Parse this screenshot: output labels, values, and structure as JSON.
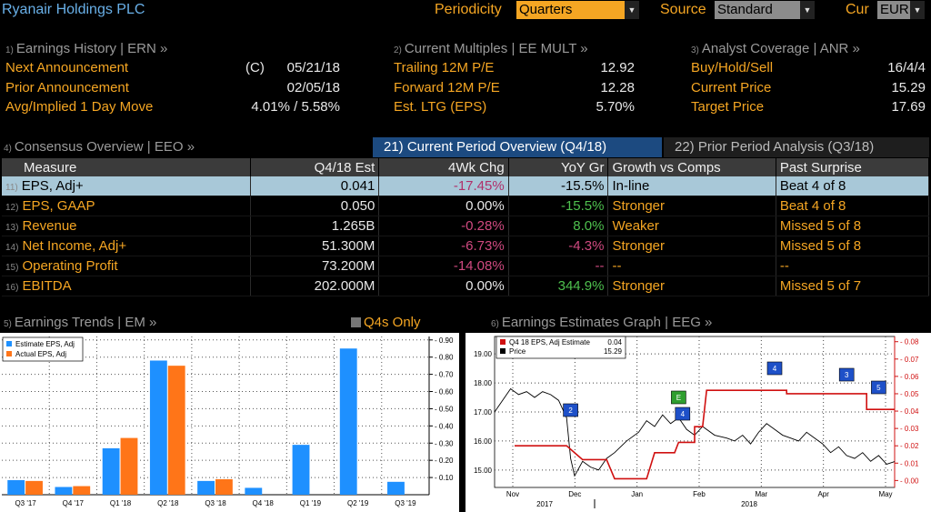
{
  "header": {
    "title": "Ryanair Holdings PLC",
    "periodicity_label": "Periodicity",
    "periodicity_value": "Quarters",
    "source_label": "Source",
    "source_value": "Standard",
    "cur_label": "Cur",
    "cur_value": "EUR"
  },
  "earnings_history": {
    "num": "1)",
    "title": "Earnings History | ERN »",
    "rows": [
      {
        "label": "Next Announcement",
        "prefix": "(C)",
        "value": "05/21/18"
      },
      {
        "label": "Prior Announcement",
        "prefix": "",
        "value": "02/05/18"
      },
      {
        "label": "Avg/Implied 1 Day Move",
        "prefix": "",
        "value": "4.01% / 5.58%"
      }
    ]
  },
  "current_multiples": {
    "num": "2)",
    "title": "Current Multiples | EE MULT »",
    "rows": [
      {
        "label": "Trailing 12M P/E",
        "value": "12.92"
      },
      {
        "label": "Forward 12M P/E",
        "value": "12.28"
      },
      {
        "label": "Est. LTG (EPS)",
        "value": "5.70%"
      }
    ]
  },
  "analyst_coverage": {
    "num": "3)",
    "title": "Analyst Coverage | ANR »",
    "rows": [
      {
        "label": "Buy/Hold/Sell",
        "value": "16/4/4"
      },
      {
        "label": "Current Price",
        "value": "15.29"
      },
      {
        "label": "Target Price",
        "value": "17.69"
      }
    ]
  },
  "consensus": {
    "num": "4)",
    "title": "Consensus Overview | EEO »",
    "tab_active": "21) Current Period Overview (Q4/18)",
    "tab_inactive": "22) Prior Period Analysis (Q3/18)",
    "columns": [
      "Measure",
      "Q4/18 Est",
      "4Wk Chg",
      "YoY Gr",
      "Growth vs Comps",
      "Past Surprise"
    ],
    "rows": [
      {
        "n": "11)",
        "measure": "EPS, Adj+",
        "est": "0.041",
        "chg": "-17.45%",
        "yoy": "-15.5%",
        "comps": "In-line",
        "surprise": "Beat 4 of 8"
      },
      {
        "n": "12)",
        "measure": "EPS, GAAP",
        "est": "0.050",
        "chg": "0.00%",
        "yoy": "-15.5%",
        "comps": "Stronger",
        "surprise": "Beat 4 of 8"
      },
      {
        "n": "13)",
        "measure": "Revenue",
        "est": "1.265B",
        "chg": "-0.28%",
        "yoy": "8.0%",
        "comps": "Weaker",
        "surprise": "Missed 5 of 8"
      },
      {
        "n": "14)",
        "measure": "Net Income, Adj+",
        "est": "51.300M",
        "chg": "-6.73%",
        "yoy": "-4.3%",
        "comps": "Stronger",
        "surprise": "Missed 5 of 8"
      },
      {
        "n": "15)",
        "measure": "Operating Profit",
        "est": "73.200M",
        "chg": "-14.08%",
        "yoy": "--",
        "comps": "--",
        "surprise": "--"
      },
      {
        "n": "16)",
        "measure": "EBITDA",
        "est": "202.000M",
        "chg": "0.00%",
        "yoy": "344.9%",
        "comps": "Stronger",
        "surprise": "Missed 5 of 7"
      }
    ]
  },
  "earnings_trends": {
    "num": "5)",
    "title": "Earnings Trends | EM »",
    "checkbox_label": "Q4s Only"
  },
  "estimates_graph": {
    "num": "6)",
    "title": "Earnings Estimates Graph | EEG »",
    "legend_estimate_label": "Q4 18 EPS, Adj Estimate",
    "legend_estimate_value": "0.04",
    "legend_price_label": "Price",
    "legend_price_value": "15.29"
  },
  "colors": {
    "estimate_bar": "#1e90ff",
    "actual_bar": "#ff7518",
    "estimate_line": "#d01010",
    "price_line": "#000000",
    "accent_orange": "#f5a623"
  },
  "chart_data": [
    {
      "type": "bar",
      "categories": [
        "Q3 '17",
        "Q4 '17",
        "Q1 '18",
        "Q2 '18",
        "Q3 '18",
        "Q4 '18",
        "Q1 '19",
        "Q2 '19",
        "Q3 '19"
      ],
      "series": [
        {
          "name": "Estimate EPS, Adj",
          "values": [
            0.085,
            0.045,
            0.27,
            0.78,
            0.08,
            0.04,
            0.29,
            0.85,
            0.075
          ]
        },
        {
          "name": "Actual EPS, Adj",
          "values": [
            0.08,
            0.05,
            0.33,
            0.75,
            0.09,
            null,
            null,
            null,
            null
          ]
        }
      ],
      "yticks": [
        "0.10",
        "0.20",
        "0.30",
        "0.40",
        "0.50",
        "0.60",
        "0.70",
        "0.80",
        "0.90"
      ],
      "ylim": [
        0,
        0.92
      ],
      "grid": true,
      "legend": "top-left"
    },
    {
      "type": "line",
      "x_labels": [
        "Nov",
        "Dec",
        "Jan",
        "Feb",
        "Mar",
        "Apr",
        "May"
      ],
      "year_labels": [
        "2017",
        "2018"
      ],
      "left_ticks": [
        "15.00",
        "16.00",
        "17.00",
        "18.00",
        "19.00"
      ],
      "right_ticks": [
        "0.00",
        "0.01",
        "0.02",
        "0.03",
        "0.04",
        "0.05",
        "0.06",
        "0.07",
        "0.08"
      ],
      "left_ylim": [
        14.4,
        19.6
      ],
      "right_ylim": [
        -0.004,
        0.083
      ],
      "series": [
        {
          "name": "Q4 18 EPS, Adj Estimate",
          "axis": "right",
          "points": [
            [
              0.05,
              0.02
            ],
            [
              0.18,
              0.02
            ],
            [
              0.22,
              0.012
            ],
            [
              0.28,
              0.012
            ],
            [
              0.3,
              0.001
            ],
            [
              0.38,
              0.001
            ],
            [
              0.4,
              0.016
            ],
            [
              0.45,
              0.016
            ],
            [
              0.46,
              0.022
            ],
            [
              0.5,
              0.022
            ],
            [
              0.5,
              0.031
            ],
            [
              0.52,
              0.031
            ],
            [
              0.53,
              0.052
            ],
            [
              0.73,
              0.052
            ],
            [
              0.73,
              0.05
            ],
            [
              0.93,
              0.05
            ],
            [
              0.93,
              0.041
            ],
            [
              1.0,
              0.041
            ]
          ]
        },
        {
          "name": "Price",
          "axis": "left",
          "points": [
            [
              0.0,
              17.0
            ],
            [
              0.02,
              17.4
            ],
            [
              0.04,
              17.8
            ],
            [
              0.06,
              17.6
            ],
            [
              0.08,
              17.7
            ],
            [
              0.1,
              17.5
            ],
            [
              0.12,
              17.7
            ],
            [
              0.14,
              17.6
            ],
            [
              0.16,
              17.4
            ],
            [
              0.18,
              16.8
            ],
            [
              0.19,
              15.4
            ],
            [
              0.2,
              14.8
            ],
            [
              0.22,
              15.3
            ],
            [
              0.24,
              15.1
            ],
            [
              0.26,
              15.0
            ],
            [
              0.28,
              15.4
            ],
            [
              0.3,
              15.6
            ],
            [
              0.33,
              16.0
            ],
            [
              0.36,
              16.3
            ],
            [
              0.38,
              16.7
            ],
            [
              0.4,
              16.5
            ],
            [
              0.42,
              16.9
            ],
            [
              0.44,
              16.6
            ],
            [
              0.46,
              16.8
            ],
            [
              0.48,
              16.4
            ],
            [
              0.5,
              16.2
            ],
            [
              0.52,
              16.5
            ],
            [
              0.55,
              16.2
            ],
            [
              0.58,
              16.1
            ],
            [
              0.6,
              16.0
            ],
            [
              0.62,
              16.2
            ],
            [
              0.64,
              15.9
            ],
            [
              0.66,
              16.3
            ],
            [
              0.68,
              16.6
            ],
            [
              0.7,
              16.4
            ],
            [
              0.72,
              16.2
            ],
            [
              0.74,
              16.1
            ],
            [
              0.76,
              16.0
            ],
            [
              0.78,
              16.3
            ],
            [
              0.8,
              16.1
            ],
            [
              0.82,
              15.9
            ],
            [
              0.84,
              15.6
            ],
            [
              0.86,
              15.8
            ],
            [
              0.88,
              15.5
            ],
            [
              0.9,
              15.4
            ],
            [
              0.92,
              15.6
            ],
            [
              0.94,
              15.3
            ],
            [
              0.96,
              15.5
            ],
            [
              0.98,
              15.2
            ],
            [
              1.0,
              15.29
            ]
          ]
        }
      ],
      "markers": [
        {
          "label": "2",
          "t": 0.19,
          "color": "#1e50c8"
        },
        {
          "label": "E",
          "t": 0.46,
          "color": "#2e9e2e"
        },
        {
          "label": "4",
          "t": 0.47,
          "color": "#1e50c8"
        },
        {
          "label": "4",
          "t": 0.7,
          "color": "#1e50c8"
        },
        {
          "label": "3",
          "t": 0.88,
          "color": "#1e50c8"
        },
        {
          "label": "5",
          "t": 0.96,
          "color": "#1e50c8"
        }
      ],
      "grid": true,
      "legend": "top-left"
    }
  ]
}
